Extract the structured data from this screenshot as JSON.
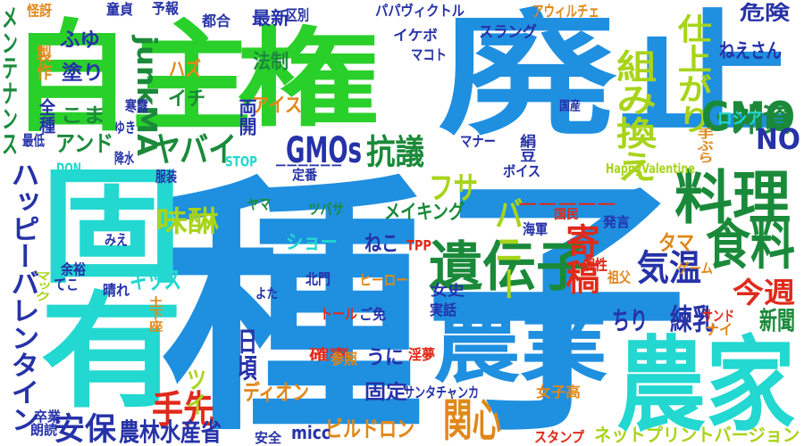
{
  "palette": {
    "blue": "#1f8fe0",
    "green": "#2ad02a",
    "cyan": "#22d8d0",
    "navy": "#2632a8",
    "orange": "#e0881a",
    "yellowgreen": "#a8d41a",
    "red": "#e02a1a",
    "darkgreen": "#1a8a3a"
  },
  "words": [
    {
      "text": "種子",
      "color": "blue"
    },
    {
      "text": "廃止",
      "color": "blue"
    },
    {
      "text": "自主",
      "color": "green"
    },
    {
      "text": "権",
      "color": "green"
    },
    {
      "text": "固有",
      "color": "cyan"
    },
    {
      "text": "農業",
      "color": "blue"
    },
    {
      "text": "農家",
      "color": "cyan"
    },
    {
      "text": "料理",
      "color": "darkgreen"
    },
    {
      "text": "食料",
      "color": "darkgreen"
    },
    {
      "text": "遺伝子",
      "color": "darkgreen"
    },
    {
      "text": "組み換え",
      "color": "yellowgreen"
    },
    {
      "text": "仕上がり",
      "color": "yellowgreen"
    },
    {
      "text": "GMO",
      "color": "darkgreen"
    },
    {
      "text": "GMOs",
      "color": "navy"
    },
    {
      "text": "抗議",
      "color": "darkgreen"
    },
    {
      "text": "ヤバイ",
      "color": "darkgreen"
    },
    {
      "text": "味醂",
      "color": "yellowgreen"
    },
    {
      "text": "外資",
      "color": "darkgreen"
    },
    {
      "text": "NO",
      "color": "navy"
    },
    {
      "text": "関心",
      "color": "orange"
    },
    {
      "text": "バニー",
      "color": "yellowgreen"
    },
    {
      "text": "フサ",
      "color": "yellowgreen"
    },
    {
      "text": "手先",
      "color": "red"
    },
    {
      "text": "安保",
      "color": "navy"
    },
    {
      "text": "農林水産省",
      "color": "navy"
    },
    {
      "text": "気温",
      "color": "navy"
    },
    {
      "text": "練乳",
      "color": "navy"
    },
    {
      "text": "今週",
      "color": "red"
    },
    {
      "text": "寄稿",
      "color": "red"
    },
    {
      "text": "ハッピーバレンタイン",
      "color": "navy"
    },
    {
      "text": "junkMA",
      "color": "darkgreen"
    },
    {
      "text": "メンテナンス",
      "color": "darkgreen"
    },
    {
      "text": "キッス",
      "color": "cyan"
    },
    {
      "text": "ビルドロン",
      "color": "orange"
    },
    {
      "text": "ネットプリントバージョン",
      "color": "yellowgreen"
    },
    {
      "text": "ちり",
      "color": "navy"
    },
    {
      "text": "新聞",
      "color": "darkgreen"
    },
    {
      "text": "タマ",
      "color": "orange"
    },
    {
      "text": "メイキング",
      "color": "darkgreen"
    },
    {
      "text": "ショー",
      "color": "cyan"
    },
    {
      "text": "ねこ",
      "color": "navy"
    },
    {
      "text": "ディオン",
      "color": "orange"
    },
    {
      "text": "固定",
      "color": "navy"
    },
    {
      "text": "うに",
      "color": "navy"
    },
    {
      "text": "ツイ",
      "color": "yellowgreen"
    },
    {
      "text": "日頃",
      "color": "navy"
    },
    {
      "text": "micc",
      "color": "navy"
    },
    {
      "text": "アンド",
      "color": "darkgreen"
    },
    {
      "text": "こま",
      "color": "darkgreen"
    },
    {
      "text": "塗り",
      "color": "navy"
    },
    {
      "text": "ふゆ",
      "color": "navy"
    },
    {
      "text": "ハズ",
      "color": "orange"
    },
    {
      "text": "イチ",
      "color": "darkgreen"
    },
    {
      "text": "アイス",
      "color": "orange"
    },
    {
      "text": "法制",
      "color": "darkgreen"
    },
    {
      "text": "最新",
      "color": "navy"
    },
    {
      "text": "危険",
      "color": "navy"
    },
    {
      "text": "ねえさん",
      "color": "navy"
    },
    {
      "text": "ロシア",
      "color": "cyan"
    },
    {
      "text": "スラング",
      "color": "navy"
    },
    {
      "text": "アウィルチェ",
      "color": "orange"
    },
    {
      "text": "パパヴィクトル",
      "color": "navy"
    },
    {
      "text": "予報",
      "color": "navy"
    },
    {
      "text": "都合",
      "color": "navy"
    },
    {
      "text": "区別",
      "color": "navy"
    },
    {
      "text": "童貞",
      "color": "navy"
    },
    {
      "text": "怪訝",
      "color": "orange"
    },
    {
      "text": "製作",
      "color": "orange"
    },
    {
      "text": "イケボ",
      "color": "navy"
    },
    {
      "text": "マコト",
      "color": "navy"
    },
    {
      "text": "両開",
      "color": "navy"
    },
    {
      "text": "全種",
      "color": "navy"
    },
    {
      "text": "寒露",
      "color": "navy"
    },
    {
      "text": "ゆき",
      "color": "navy"
    },
    {
      "text": "最低",
      "color": "navy"
    },
    {
      "text": "降水",
      "color": "navy"
    },
    {
      "text": "DQN",
      "color": "cyan"
    },
    {
      "text": "STOP",
      "color": "cyan"
    },
    {
      "text": "服装",
      "color": "navy"
    },
    {
      "text": "ーーーーーー",
      "color": "navy"
    },
    {
      "text": "定番",
      "color": "navy"
    },
    {
      "text": "ーーーーー",
      "color": "red"
    },
    {
      "text": "マナー",
      "color": "navy"
    },
    {
      "text": "ボイス",
      "color": "navy"
    },
    {
      "text": "HappyValentine",
      "color": "yellowgreen"
    },
    {
      "text": "国民",
      "color": "red"
    },
    {
      "text": "海軍",
      "color": "navy"
    },
    {
      "text": "発言",
      "color": "navy"
    },
    {
      "text": "ゲーム",
      "color": "orange"
    },
    {
      "text": "手ぶら",
      "color": "orange"
    },
    {
      "text": "国産",
      "color": "navy"
    },
    {
      "text": "絹豆",
      "color": "navy"
    },
    {
      "text": "ヤマ",
      "color": "darkgreen"
    },
    {
      "text": "ツバサ",
      "color": "darkgreen"
    },
    {
      "text": "TPP",
      "color": "red"
    },
    {
      "text": "個性",
      "color": "red"
    },
    {
      "text": "祖父",
      "color": "orange"
    },
    {
      "text": "余裕",
      "color": "navy"
    },
    {
      "text": "みえ",
      "color": "navy"
    },
    {
      "text": "マック",
      "color": "yellowgreen"
    },
    {
      "text": "てこ",
      "color": "navy"
    },
    {
      "text": "晴れ",
      "color": "navy"
    },
    {
      "text": "土下座",
      "color": "orange"
    },
    {
      "text": "よた",
      "color": "navy"
    },
    {
      "text": "北門",
      "color": "navy"
    },
    {
      "text": "ヒーロー",
      "color": "orange"
    },
    {
      "text": "トール",
      "color": "red"
    },
    {
      "text": "ご免",
      "color": "navy"
    },
    {
      "text": "実話",
      "color": "navy"
    },
    {
      "text": "サンド",
      "color": "red"
    },
    {
      "text": "ナイ",
      "color": "orange"
    },
    {
      "text": "確率",
      "color": "red"
    },
    {
      "text": "参照",
      "color": "orange"
    },
    {
      "text": "淫夢",
      "color": "red"
    },
    {
      "text": "女史",
      "color": "navy"
    },
    {
      "text": "女子高",
      "color": "orange"
    },
    {
      "text": "サンタチャンカ",
      "color": "navy"
    },
    {
      "text": "スタンプ",
      "color": "red"
    },
    {
      "text": "卒業",
      "color": "navy"
    },
    {
      "text": "朗読",
      "color": "navy"
    },
    {
      "text": "安全",
      "color": "navy"
    }
  ]
}
